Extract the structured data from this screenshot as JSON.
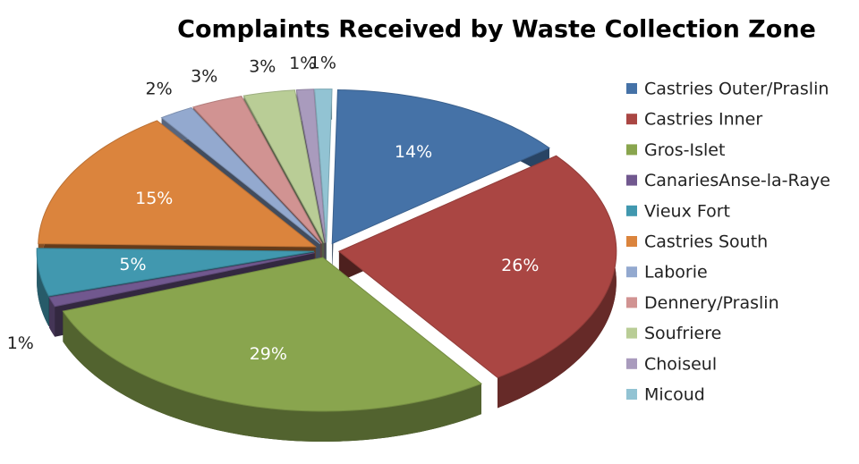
{
  "chart_data": {
    "type": "pie",
    "title": "Complaints Received by Waste Collection Zone",
    "categories": [
      "Castries Outer/Praslin",
      "Castries Inner",
      "Gros-Islet",
      "CanariesAnse-la-Raye",
      "Vieux Fort",
      "Castries South",
      "Laborie",
      "Dennery/Praslin",
      "Soufriere",
      "Choiseul",
      "Micoud"
    ],
    "values": [
      14,
      26,
      29,
      1,
      5,
      15,
      2,
      3,
      3,
      1,
      1
    ],
    "value_labels": [
      "14%",
      "26%",
      "29%",
      "1%",
      "5%",
      "15%",
      "2%",
      "3%",
      "3%",
      "1%",
      "1%"
    ],
    "colors": [
      "#4572a7",
      "#aa4643",
      "#89a54e",
      "#71588f",
      "#4198af",
      "#db843d",
      "#93a9cf",
      "#d19392",
      "#b9cd96",
      "#a99bbd",
      "#92c3d3"
    ],
    "legend": "right"
  }
}
